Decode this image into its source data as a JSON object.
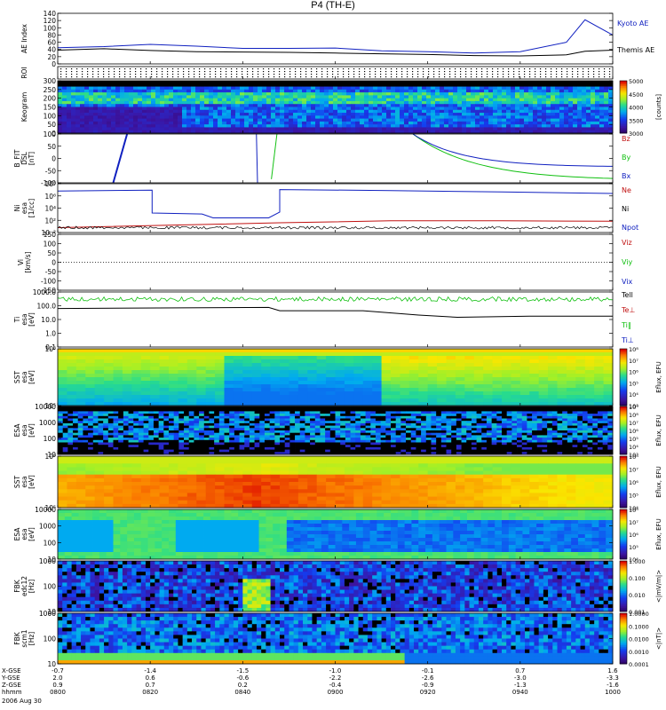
{
  "title": "P4 (TH-E)",
  "date_label": "2006 Aug 30",
  "colors": {
    "blue": "#1020c0",
    "red": "#c01010",
    "green": "#10c010",
    "black": "#000000"
  },
  "chart_data": [
    {
      "type": "line",
      "name": "ae",
      "ylabel": "AE Index",
      "ylim": [
        0,
        140
      ],
      "yticks": [
        "140",
        "120",
        "100",
        "80",
        "60",
        "40",
        "20",
        "0"
      ],
      "legend": [
        "Kyoto AE",
        "Themis AE"
      ],
      "x": [
        0,
        5,
        10,
        15,
        20,
        25,
        30,
        35,
        40,
        45,
        50,
        55,
        57,
        60
      ],
      "series": [
        {
          "name": "Kyoto AE",
          "values": [
            45,
            48,
            54,
            49,
            43,
            43,
            44,
            36,
            34,
            30,
            34,
            60,
            122,
            80
          ]
        },
        {
          "name": "Themis AE",
          "values": [
            38,
            42,
            37,
            34,
            33,
            32,
            30,
            28,
            26,
            23,
            22,
            25,
            35,
            38
          ]
        }
      ]
    },
    {
      "type": "table",
      "name": "roi",
      "ylabel": "ROI"
    },
    {
      "type": "heatmap",
      "name": "keogram",
      "ylabel": "Keogram",
      "yticks": [
        "300",
        "250",
        "200",
        "150",
        "100",
        "50",
        "0"
      ],
      "colorbar_ticks": [
        "5000",
        "4500",
        "4000",
        "3500",
        "3000"
      ],
      "colorbar_label": "[counts]"
    },
    {
      "type": "line",
      "name": "bfit",
      "ylabel": "B_FIT\nDSL\n[nT]",
      "ylim": [
        -100,
        100
      ],
      "yticks": [
        "100",
        "50",
        "0",
        "-50",
        "-100"
      ],
      "legend": [
        "Bz",
        "By",
        "Bx"
      ]
    },
    {
      "type": "line",
      "name": "ni",
      "ylabel": "Ni\nesa\n[1/cc]",
      "yticks": [
        "10⁸",
        "10⁶",
        "10⁴",
        "10²",
        "10⁻²"
      ],
      "legend": [
        "Ne",
        "Ni",
        "Npot"
      ]
    },
    {
      "type": "line",
      "name": "vi",
      "ylabel": "Vi\n[km/s]",
      "ylim": [
        -150,
        150
      ],
      "yticks": [
        "150",
        "100",
        "50",
        "0",
        "-50",
        "-100",
        "-150"
      ],
      "legend": [
        "Viz",
        "Viy",
        "Vix"
      ]
    },
    {
      "type": "line",
      "name": "ti",
      "ylabel": "Ti\nesa\n[eV]",
      "yticks": [
        "1000.0",
        "100.0",
        "10.0",
        "1.0",
        "0.1"
      ],
      "legend": [
        "Tell",
        "Te⊥",
        "Ti‖",
        "Ti⊥"
      ]
    },
    {
      "type": "heatmap",
      "name": "sst_e",
      "ylabel": "SST\nesa\n[eV]",
      "yticks": [
        "10⁶",
        "10⁵"
      ],
      "colorbar_ticks": [
        "10⁸",
        "10⁷",
        "10⁶",
        "10⁵",
        "10⁴",
        "10³"
      ],
      "colorbar_label": "Eflux, EFU"
    },
    {
      "type": "heatmap",
      "name": "esa_e",
      "ylabel": "ESA\nesa\n[eV]",
      "yticks": [
        "10000",
        "1000",
        "100",
        "10"
      ],
      "colorbar_ticks": [
        "10⁹",
        "10⁸",
        "10⁷",
        "10⁶",
        "10⁵",
        "10⁴",
        "10³"
      ],
      "colorbar_label": "Eflux, EFU"
    },
    {
      "type": "heatmap",
      "name": "sst_i",
      "ylabel": "SST\nesa\n[eV]",
      "yticks": [
        "10⁶",
        "10⁵"
      ],
      "colorbar_ticks": [
        "10⁸",
        "10⁷",
        "10⁶",
        "10⁵",
        "10⁴"
      ],
      "colorbar_label": "Eflux, EFU"
    },
    {
      "type": "heatmap",
      "name": "esa_i",
      "ylabel": "ESA\nesa\n[eV]",
      "yticks": [
        "10000",
        "1000",
        "100",
        "10"
      ],
      "colorbar_ticks": [
        "10⁸",
        "10⁷",
        "10⁶",
        "10⁵",
        "10⁴"
      ],
      "colorbar_label": "Eflux, EFU"
    },
    {
      "type": "heatmap",
      "name": "fbk_e12",
      "ylabel": "FBK\nedc12\n[Hz]",
      "yticks": [
        "1000",
        "100",
        "10"
      ],
      "colorbar_ticks": [
        "1.000",
        "0.100",
        "0.010",
        "0.001"
      ],
      "colorbar_label": "<|mV/m|>"
    },
    {
      "type": "heatmap",
      "name": "fbk_b",
      "ylabel": "FBK\nscm1\n[Hz]",
      "yticks": [
        "1000",
        "100",
        "10"
      ],
      "colorbar_ticks": [
        "1.0000",
        "0.1000",
        "0.0100",
        "0.0010",
        "0.0001"
      ],
      "colorbar_label": "<|nT|>"
    }
  ],
  "x_axis": {
    "row_labels": [
      "X-GSE",
      "Y-GSE",
      "Z-GSE",
      "hhmm"
    ],
    "columns": [
      {
        "x": "-0.7",
        "y": "2.0",
        "z": "0.9",
        "t": "0800"
      },
      {
        "x": "-1.4",
        "y": "0.6",
        "z": "0.7",
        "t": "0820"
      },
      {
        "x": "-1.5",
        "y": "-0.6",
        "z": "0.2",
        "t": "0840"
      },
      {
        "x": "-1.0",
        "y": "-2.2",
        "z": "-0.4",
        "t": "0900"
      },
      {
        "x": "-0.1",
        "y": "-2.6",
        "z": "-0.9",
        "t": "0920"
      },
      {
        "x": "0.7",
        "y": "-3.0",
        "z": "-1.3",
        "t": "0940"
      },
      {
        "x": "1.6",
        "y": "-3.3",
        "z": "-1.6",
        "t": "1000"
      }
    ]
  }
}
